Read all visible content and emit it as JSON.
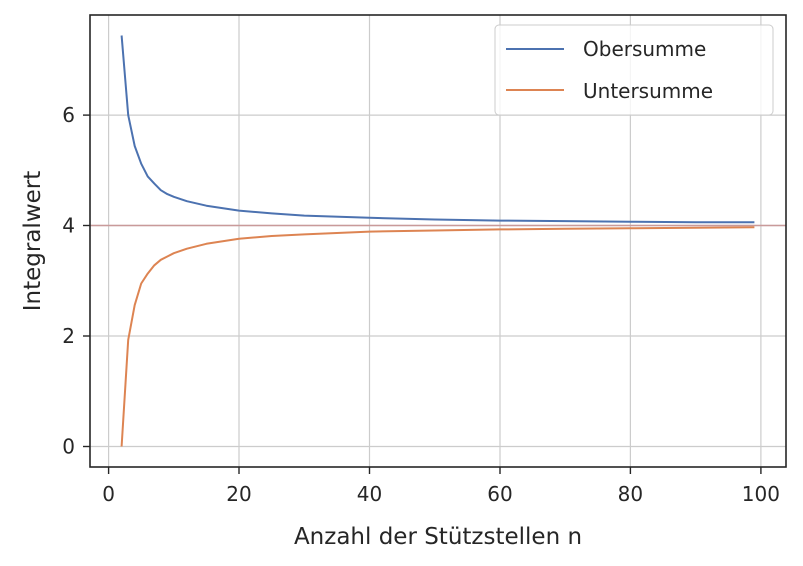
{
  "chart_data": {
    "type": "line",
    "title": "",
    "xlabel": "Anzahl der Stützstellen n",
    "ylabel": "Integralwert",
    "xlim": [
      -2.85,
      103.85
    ],
    "ylim": [
      -0.372,
      7.812
    ],
    "xticks": [
      0,
      20,
      40,
      60,
      80,
      100
    ],
    "yticks": [
      0,
      2,
      4,
      6
    ],
    "grid": true,
    "legend_position": "top-right",
    "reference_line": {
      "y": 4.0,
      "color": "#c99a9a"
    },
    "series": [
      {
        "name": "Obersumme",
        "color": "#4c72b0",
        "x": [
          2,
          3,
          4,
          5,
          6,
          7,
          8,
          9,
          10,
          12,
          15,
          20,
          25,
          30,
          40,
          50,
          60,
          70,
          80,
          90,
          99
        ],
        "y": [
          7.44,
          6.0,
          5.44,
          5.12,
          4.89,
          4.76,
          4.64,
          4.57,
          4.52,
          4.44,
          4.36,
          4.27,
          4.22,
          4.18,
          4.14,
          4.11,
          4.09,
          4.08,
          4.07,
          4.06,
          4.06
        ]
      },
      {
        "name": "Untersumme",
        "color": "#dd8452",
        "x": [
          2,
          3,
          4,
          5,
          6,
          7,
          8,
          9,
          10,
          12,
          15,
          20,
          25,
          30,
          40,
          50,
          60,
          70,
          80,
          90,
          99
        ],
        "y": [
          0.0,
          1.93,
          2.56,
          2.95,
          3.13,
          3.28,
          3.38,
          3.44,
          3.5,
          3.58,
          3.67,
          3.76,
          3.81,
          3.84,
          3.89,
          3.91,
          3.93,
          3.94,
          3.95,
          3.96,
          3.97
        ]
      }
    ]
  }
}
